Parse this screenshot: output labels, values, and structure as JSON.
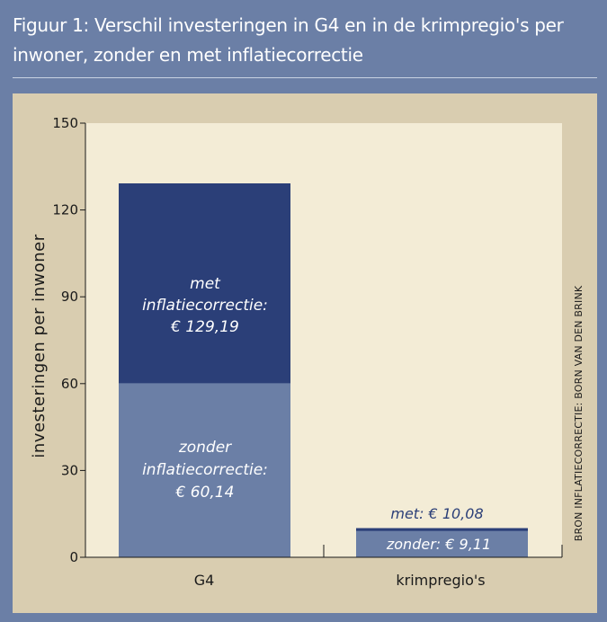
{
  "header": {
    "title": "Figuur 1: Verschil investeringen in G4 en in de krimpregio's per inwoner, zonder en met inflatiecorrectie"
  },
  "colors": {
    "background": "#6b7fa6",
    "panel": "#d9cdb0",
    "plot_area": "#f3ecd6",
    "met_series": "#2b3f78",
    "zonder_series": "#6b7fa6"
  },
  "chart_data": {
    "type": "bar",
    "stacked_overlay": true,
    "categories": [
      "G4",
      "krimpregio's"
    ],
    "series": [
      {
        "name": "met inflatiecorrectie",
        "values": [
          129.19,
          10.08
        ]
      },
      {
        "name": "zonder inflatiecorrectie",
        "values": [
          60.14,
          9.11
        ]
      }
    ],
    "ylabel": "investeringen per inwoner",
    "ylim": [
      0,
      150
    ],
    "yticks": [
      "0",
      "30",
      "60",
      "90",
      "120",
      "150"
    ],
    "labels": {
      "g4_met": [
        "met",
        "inflatiecorrectie:",
        "€ 129,19"
      ],
      "g4_zonder": [
        "zonder",
        "inflatiecorrectie:",
        "€ 60,14"
      ],
      "krimp_met": "met: € 10,08",
      "krimp_zonder": "zonder: € 9,11"
    },
    "source": "BRON INFLATIECORRECTIE: BORN VAN DEN BRINK",
    "grid": false
  }
}
